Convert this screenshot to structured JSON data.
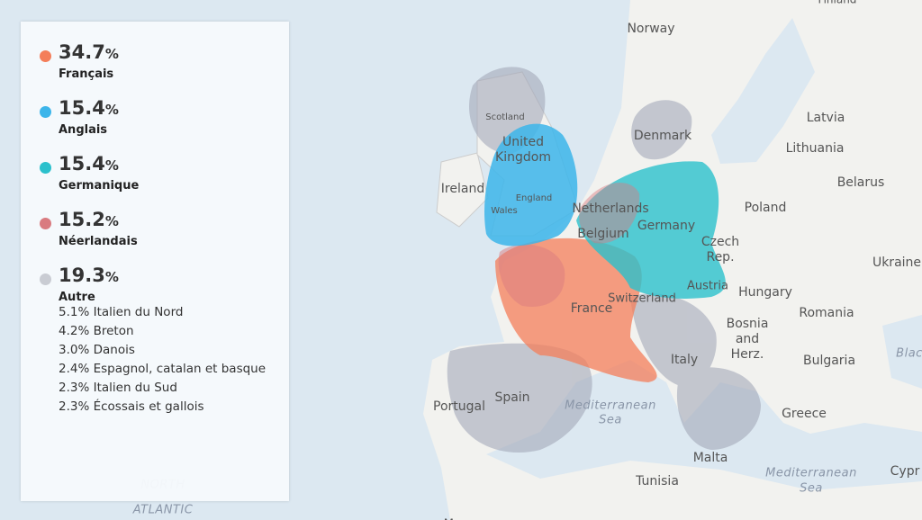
{
  "legend": {
    "items": [
      {
        "percent": "34.7",
        "unit": "%",
        "label": "Français",
        "color": "#f47e5a"
      },
      {
        "percent": "15.4",
        "unit": "%",
        "label": "Anglais",
        "color": "#3cb5ea"
      },
      {
        "percent": "15.4",
        "unit": "%",
        "label": "Germanique",
        "color": "#2bc0cc"
      },
      {
        "percent": "15.2",
        "unit": "%",
        "label": "Néerlandais",
        "color": "#d97b80"
      },
      {
        "percent": "19.3",
        "unit": "%",
        "label": "Autre",
        "color": "#c9ccd3"
      }
    ],
    "other_details": [
      "5.1% Italien du Nord",
      "4.2% Breton",
      "3.0% Danois",
      "2.4% Espagnol, catalan et basque",
      "2.3% Italien du Sud",
      "2.3% Écossais et gallois"
    ]
  },
  "map_labels": [
    "Norway",
    "Latvia",
    "Lithuania",
    "Belarus",
    "Denmark",
    "Poland",
    "Ukraine",
    "United",
    "Kingdom",
    "Scotland",
    "England",
    "Wales",
    "Ireland",
    "Netherlands",
    "Belgium",
    "Germany",
    "Czech",
    "Rep.",
    "Austria",
    "Hungary",
    "Romania",
    "Switzerland",
    "France",
    "Bosnia",
    "and",
    "Herz.",
    "Bulgaria",
    "Italy",
    "Portugal",
    "Spain",
    "Mediterranean",
    "Sea",
    "Greece",
    "Malta",
    "Tunisia",
    "Mediterranean",
    "Sea",
    "Cypr",
    "Blac",
    "NORTH",
    "ATLANTIC",
    "Finland",
    "Morocco"
  ]
}
